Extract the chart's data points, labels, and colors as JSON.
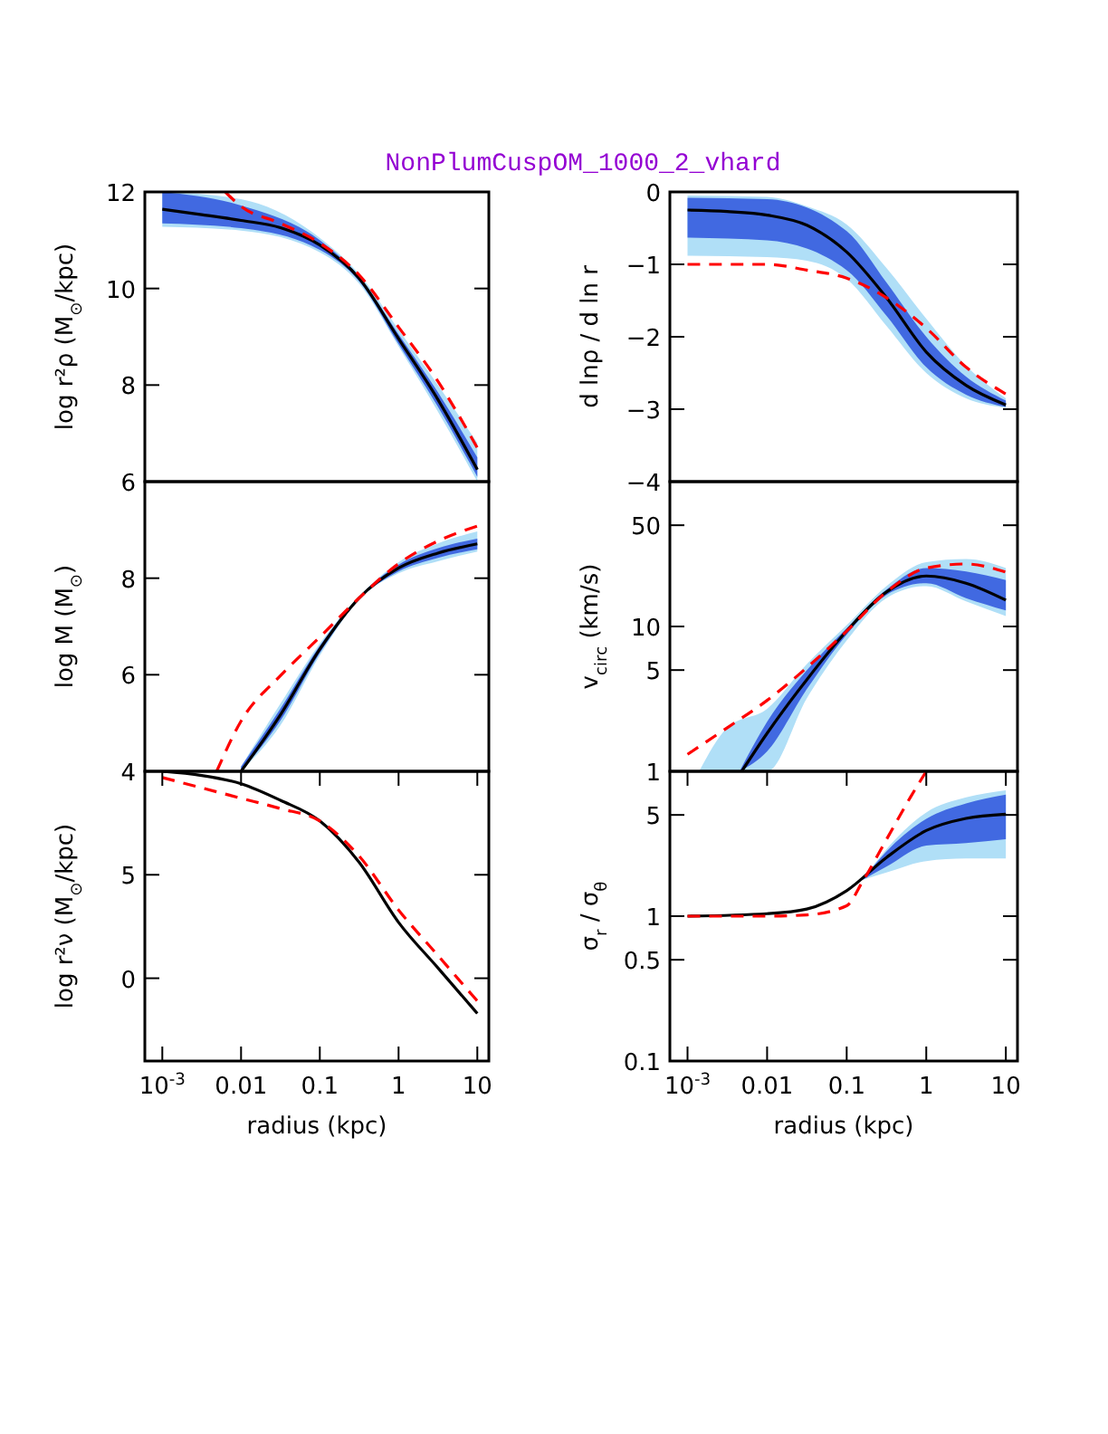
{
  "chart_data": [
    {
      "type": "line",
      "title": "NonPlumCuspOM_1000_2_vhard",
      "ylabel": "log r²ρ (M$_{⊙}$/kpc)",
      "log": "x",
      "xlim": [
        0.0006,
        14
      ],
      "ylim": [
        6,
        12
      ],
      "yticks": [
        6,
        8,
        10,
        12
      ],
      "tick_labels": "y",
      "series": [
        {
          "color": "#b0dff7",
          "x": [
            0.001,
            0.01,
            0.1,
            0.316,
            1,
            3.16,
            10
          ],
          "values": [
            null,
            null,
            null,
            null,
            null,
            null,
            null
          ],
          "lower": [
            11.28,
            11.2,
            10.75,
            10.1,
            8.8,
            7.45,
            6.0
          ],
          "upper": [
            12,
            11.85,
            11.05,
            10.3,
            9.15,
            8.0,
            6.8
          ]
        },
        {
          "color": "#4169e1",
          "x": [
            0.001,
            0.01,
            0.1,
            0.316,
            1,
            3.16,
            10
          ],
          "values": [
            null,
            null,
            null,
            null,
            null,
            null,
            null
          ],
          "lower": [
            11.35,
            11.25,
            10.8,
            10.15,
            8.85,
            7.55,
            6.1
          ],
          "upper": [
            12,
            11.72,
            11.0,
            10.25,
            9.05,
            7.85,
            6.5
          ]
        },
        {
          "color": "#000000",
          "x": [
            0.001,
            0.00316,
            0.01,
            0.0316,
            0.1,
            0.316,
            1,
            3.16,
            10
          ],
          "values": [
            11.64,
            11.53,
            11.41,
            11.26,
            10.9,
            10.21,
            8.96,
            7.7,
            6.25
          ]
        },
        {
          "color": "#ff0000",
          "line_style": "dashed",
          "x": [
            0.0063,
            0.01,
            0.0316,
            0.1,
            0.316,
            1,
            3.16,
            10
          ],
          "values": [
            12,
            11.7,
            11.35,
            10.94,
            10.28,
            9.2,
            8.08,
            6.7
          ]
        }
      ]
    },
    {
      "type": "line",
      "ylabel": "d lnρ / d ln r",
      "log": "x",
      "xlim": [
        0.0006,
        14
      ],
      "ylim": [
        -4,
        0
      ],
      "yticks": [
        0,
        -1,
        -2,
        -3,
        -4
      ],
      "tick_labels": "y",
      "series": [
        {
          "color": "#b0dff7",
          "x": [
            0.001,
            0.01,
            0.0316,
            0.1,
            0.316,
            1,
            3.16,
            10
          ],
          "values": [
            null,
            null,
            null,
            null,
            null,
            null,
            null,
            null
          ],
          "lower": [
            -0.88,
            -0.9,
            -0.95,
            -1.2,
            -1.85,
            -2.5,
            -2.85,
            -2.98
          ],
          "upper": [
            -0.05,
            -0.07,
            -0.2,
            -0.45,
            -1.05,
            -1.75,
            -2.4,
            -2.85
          ]
        },
        {
          "color": "#4169e1",
          "x": [
            0.001,
            0.01,
            0.1,
            0.316,
            1,
            3.16,
            10
          ],
          "values": [
            null,
            null,
            null,
            null,
            null,
            null,
            null
          ],
          "lower": [
            -0.63,
            -0.67,
            -1.08,
            -1.71,
            -2.42,
            -2.8,
            -2.97
          ],
          "upper": [
            -0.08,
            -0.1,
            -0.54,
            -1.25,
            -2.0,
            -2.55,
            -2.88
          ]
        },
        {
          "color": "#000000",
          "x": [
            0.001,
            0.00316,
            0.01,
            0.0316,
            0.1,
            0.316,
            1,
            3.16,
            10
          ],
          "values": [
            -0.25,
            -0.27,
            -0.32,
            -0.46,
            -0.83,
            -1.46,
            -2.21,
            -2.67,
            -2.94
          ]
        },
        {
          "color": "#ff0000",
          "line_style": "dashed",
          "x": [
            0.001,
            0.01,
            0.0316,
            0.1,
            0.316,
            1,
            3.16,
            10
          ],
          "values": [
            -1.0,
            -1.0,
            -1.08,
            -1.19,
            -1.46,
            -1.88,
            -2.42,
            -2.79
          ]
        }
      ]
    },
    {
      "type": "line",
      "ylabel": "log M (M$_{⊙}$)",
      "log": "x",
      "xlim": [
        0.0006,
        14
      ],
      "ylim": [
        4,
        10
      ],
      "yticks": [
        4,
        6,
        8
      ],
      "tick_labels": "y",
      "series": [
        {
          "color": "#b0dff7",
          "x": [
            0.01,
            0.0316,
            0.1,
            0.316,
            1,
            3.16,
            10
          ],
          "values": [
            null,
            null,
            null,
            null,
            null,
            null,
            null
          ],
          "lower": [
            4,
            4.95,
            6.4,
            7.56,
            8.1,
            8.35,
            8.55
          ],
          "upper": [
            4.1,
            5.4,
            6.65,
            7.62,
            8.33,
            8.72,
            8.97
          ]
        },
        {
          "color": "#4169e1",
          "x": [
            0.01,
            0.0316,
            0.1,
            0.316,
            1,
            3.16,
            10
          ],
          "values": [
            null,
            null,
            null,
            null,
            null,
            null,
            null
          ],
          "lower": [
            4,
            5.05,
            6.45,
            7.56,
            8.14,
            8.42,
            8.6
          ],
          "upper": [
            4.1,
            5.3,
            6.6,
            7.62,
            8.28,
            8.62,
            8.82
          ]
        },
        {
          "color": "#000000",
          "x": [
            0.01,
            0.0316,
            0.1,
            0.316,
            1,
            3.16,
            10
          ],
          "values": [
            4.0,
            5.17,
            6.53,
            7.59,
            8.21,
            8.52,
            8.71
          ]
        },
        {
          "color": "#ff0000",
          "line_style": "dashed",
          "x": [
            0.0049,
            0.01,
            0.0316,
            0.1,
            0.316,
            1,
            3.16,
            10
          ],
          "values": [
            4.0,
            5.04,
            5.98,
            6.78,
            7.59,
            8.3,
            8.77,
            9.08
          ]
        }
      ]
    },
    {
      "type": "line",
      "ylabel": "v$_{circ}$ (km/s)",
      "log": "xy",
      "xlim": [
        0.0006,
        14
      ],
      "ylim": [
        1,
        100
      ],
      "yticks": [
        1,
        5,
        10,
        50
      ],
      "tick_labels": "y",
      "series": [
        {
          "color": "#b0dff7",
          "x": [
            0.0014,
            0.00316,
            0.01,
            0.0316,
            0.1,
            0.316,
            1,
            3.16,
            10
          ],
          "values": [
            null,
            null,
            null,
            null,
            null,
            null,
            null,
            null,
            null
          ],
          "lower": [
            1,
            1,
            1,
            3.2,
            8.0,
            15.7,
            19,
            14.9,
            11.8
          ],
          "upper": [
            1,
            2.0,
            2.7,
            5.5,
            10.2,
            19,
            27.8,
            29.2,
            25.3
          ]
        },
        {
          "color": "#4169e1",
          "x": [
            0.0045,
            0.01,
            0.0316,
            0.1,
            0.316,
            1,
            3.16,
            10
          ],
          "values": [
            null,
            null,
            null,
            null,
            null,
            null,
            null,
            null
          ],
          "lower": [
            1,
            1.37,
            3.7,
            8.8,
            16.5,
            19.9,
            15.7,
            12.9
          ],
          "upper": [
            1,
            2.2,
            5.0,
            9.7,
            18,
            25.3,
            24,
            20.9
          ]
        },
        {
          "color": "#000000",
          "x": [
            0.0048,
            0.01,
            0.0316,
            0.1,
            0.316,
            1,
            3.16,
            10
          ],
          "values": [
            1,
            1.83,
            4.3,
            9.3,
            17.3,
            22.3,
            19.9,
            15.2
          ]
        },
        {
          "color": "#ff0000",
          "line_style": "dashed",
          "x": [
            0.001,
            0.00316,
            0.01,
            0.0316,
            0.1,
            0.316,
            1,
            3.16,
            10
          ],
          "values": [
            1.31,
            2.0,
            3.09,
            5.2,
            9.3,
            17.3,
            25.3,
            27.0,
            23.7
          ]
        }
      ]
    },
    {
      "type": "line",
      "ylabel": "log r²ν (M$_{⊙}$/kpc)",
      "xlabel": "radius (kpc)",
      "log": "x",
      "xlim": [
        0.0006,
        14
      ],
      "ylim": [
        -4,
        10
      ],
      "xticks": [
        {
          "value": 0.001,
          "label": "10$^{-3}$"
        },
        0.01,
        0.1,
        1,
        10
      ],
      "yticks": [
        0,
        5
      ],
      "series": [
        {
          "color": "#000000",
          "x": [
            0.001,
            0.00316,
            0.01,
            0.0316,
            0.1,
            0.316,
            1,
            3.16,
            10
          ],
          "values": [
            10,
            9.8,
            9.4,
            8.6,
            7.6,
            5.6,
            2.7,
            0.5,
            -1.7
          ]
        },
        {
          "color": "#ff0000",
          "line_style": "dashed",
          "x": [
            0.001,
            0.00316,
            0.01,
            0.0316,
            0.1,
            0.316,
            1,
            3.16,
            10
          ],
          "values": [
            9.7,
            9.2,
            8.7,
            8.2,
            7.6,
            5.9,
            3.3,
            1.1,
            -1.1
          ]
        }
      ]
    },
    {
      "type": "line",
      "ylabel": "σ$_{r}$ / σ$_{θ}$",
      "xlabel": "radius (kpc)",
      "log": "xy",
      "xlim": [
        0.0006,
        14
      ],
      "ylim": [
        0.1,
        10
      ],
      "xticks": [
        {
          "value": 0.001,
          "label": "10$^{-3}$"
        },
        0.01,
        0.1,
        1,
        10
      ],
      "yticks": [
        0.1,
        0.5,
        1,
        5
      ],
      "series": [
        {
          "color": "#b0dff7",
          "x": [
            0.158,
            0.316,
            1,
            3.16,
            10
          ],
          "values": [
            null,
            null,
            null,
            null,
            null
          ],
          "lower": [
            1.78,
            2.0,
            2.4,
            2.5,
            2.5
          ],
          "upper": [
            1.78,
            2.9,
            5.2,
            6.6,
            7.4
          ]
        },
        {
          "color": "#4169e1",
          "x": [
            0.158,
            0.316,
            1,
            3.16,
            10
          ],
          "values": [
            null,
            null,
            null,
            null,
            null
          ],
          "lower": [
            1.78,
            2.2,
            3.07,
            3.2,
            3.4
          ],
          "upper": [
            1.78,
            2.8,
            4.7,
            6.0,
            6.9
          ]
        },
        {
          "color": "#000000",
          "x": [
            0.001,
            0.01,
            0.0316,
            0.1,
            0.316,
            1,
            3.16,
            10
          ],
          "values": [
            1,
            1.04,
            1.12,
            1.5,
            2.54,
            3.9,
            4.73,
            5.06
          ]
        },
        {
          "color": "#ff0000",
          "line_style": "dashed",
          "x": [
            0.001,
            0.01,
            0.0316,
            0.1,
            0.158,
            0.316,
            0.63,
            1
          ],
          "values": [
            1,
            1,
            1.02,
            1.18,
            1.73,
            3.38,
            6.6,
            10
          ]
        }
      ]
    }
  ]
}
